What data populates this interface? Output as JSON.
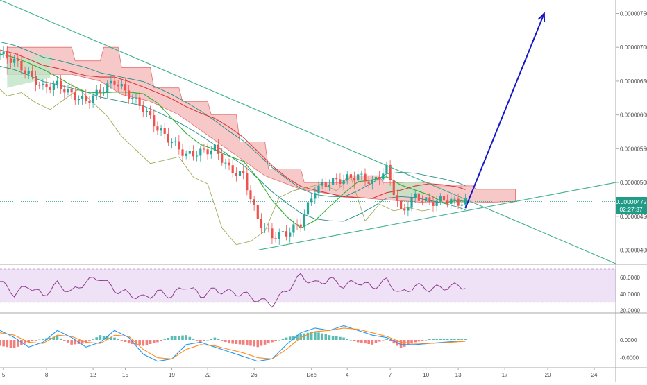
{
  "colors": {
    "background": "#ffffff",
    "axis_text": "#4a4a4a",
    "separator": "#aaaaaa",
    "candle_up": "#26a69a",
    "candle_down": "#ef5350",
    "trendline": "#3bb08f",
    "projection_arrow": "#1616c8",
    "cloud_bear": "#f4b6b6",
    "cloud_bull": "#bfe5c5",
    "rsi_line": "#8e3b8e",
    "rsi_band": "#e9d5f2",
    "macd_line": "#2196f3",
    "signal_line": "#ff8c1a",
    "price_badge": "#1f9b86"
  },
  "price_badge": {
    "price": "0.00000472",
    "countdown": "02:27:37"
  },
  "price_axis": {
    "ticks": [
      "0.00000750",
      "0.00000700",
      "0.00000650",
      "0.00000600",
      "0.00000550",
      "0.00000500",
      "0.00000450",
      "0.00000400"
    ],
    "hidden_under_badge": "0.00000450"
  },
  "rsi_axis": {
    "ticks": [
      "60.0000",
      "40.0000",
      "20.0000"
    ]
  },
  "macd_axis": {
    "ticks": [
      "0.0000",
      "-0.0000"
    ]
  },
  "date_axis": {
    "labels": [
      "5",
      "8",
      "12",
      "15",
      "19",
      "22",
      "26",
      "Dec",
      "4",
      "7",
      "10",
      "13",
      "17",
      "20",
      "24"
    ]
  },
  "chart_data": [
    {
      "type": "candlestick",
      "panel": "price",
      "ylim": [
        3.8e-06,
        7.7e-06
      ],
      "date_labels": [
        "5",
        "8",
        "12",
        "15",
        "19",
        "22",
        "26",
        "Dec",
        "4",
        "7",
        "10",
        "13",
        "17",
        "20",
        "24"
      ],
      "series": [
        {
          "kind": "close",
          "points": [
            [
              0,
              6.9e-06
            ],
            [
              4,
              6.8e-06
            ],
            [
              8,
              6.6e-06
            ],
            [
              12,
              6.4e-06
            ],
            [
              16,
              6.45e-06
            ],
            [
              20,
              6.3e-06
            ],
            [
              24,
              6.2e-06
            ],
            [
              28,
              6.35e-06
            ],
            [
              32,
              6.5e-06
            ],
            [
              36,
              6.3e-06
            ],
            [
              40,
              6.1e-06
            ],
            [
              44,
              5.8e-06
            ],
            [
              48,
              5.6e-06
            ],
            [
              52,
              5.4e-06
            ],
            [
              56,
              5.45e-06
            ],
            [
              60,
              5.5e-06
            ],
            [
              64,
              5.2e-06
            ],
            [
              68,
              5.1e-06
            ],
            [
              72,
              4.45e-06
            ],
            [
              76,
              4.2e-06
            ],
            [
              80,
              4.25e-06
            ],
            [
              84,
              4.4e-06
            ],
            [
              88,
              4.9e-06
            ],
            [
              92,
              5e-06
            ],
            [
              96,
              5.05e-06
            ],
            [
              100,
              5.1e-06
            ],
            [
              104,
              5e-06
            ],
            [
              108,
              5.2e-06
            ],
            [
              112,
              4.55e-06
            ],
            [
              116,
              4.8e-06
            ],
            [
              120,
              4.7e-06
            ],
            [
              124,
              4.75e-06
            ],
            [
              128,
              4.7e-06
            ],
            [
              130,
              4.72e-06
            ]
          ]
        },
        {
          "kind": "ichimoku_cloud_top",
          "points": [
            [
              2,
              7e-06
            ],
            [
              20,
              7e-06
            ],
            [
              21,
              6.8e-06
            ],
            [
              28,
              6.8e-06
            ],
            [
              29,
              7e-06
            ],
            [
              33,
              7e-06
            ],
            [
              34,
              6.7e-06
            ],
            [
              42,
              6.7e-06
            ],
            [
              43,
              6.4e-06
            ],
            [
              50,
              6.4e-06
            ],
            [
              51,
              6.2e-06
            ],
            [
              58,
              6.2e-06
            ],
            [
              59,
              6e-06
            ],
            [
              66,
              6e-06
            ],
            [
              67,
              5.6e-06
            ],
            [
              74,
              5.6e-06
            ],
            [
              75,
              5.2e-06
            ],
            [
              84,
              5.2e-06
            ],
            [
              85,
              5e-06
            ],
            [
              96,
              5e-06
            ],
            [
              97,
              5.1e-06
            ],
            [
              106,
              5.1e-06
            ],
            [
              107,
              5e-06
            ],
            [
              120,
              5e-06
            ],
            [
              121,
              4.95e-06
            ],
            [
              132,
              4.95e-06
            ],
            [
              133,
              4.9e-06
            ],
            [
              144,
              4.9e-06
            ]
          ]
        },
        {
          "kind": "ichimoku_cloud_bottom",
          "points": [
            [
              2,
              6.6e-06
            ],
            [
              20,
              6.6e-06
            ],
            [
              28,
              6.5e-06
            ],
            [
              34,
              6.3e-06
            ],
            [
              42,
              6.2e-06
            ],
            [
              50,
              6e-06
            ],
            [
              58,
              5.7e-06
            ],
            [
              66,
              5.4e-06
            ],
            [
              74,
              5.1e-06
            ],
            [
              84,
              4.9e-06
            ],
            [
              96,
              4.8e-06
            ],
            [
              106,
              4.75e-06
            ],
            [
              120,
              4.7e-06
            ],
            [
              132,
              4.7e-06
            ],
            [
              144,
              4.72e-06
            ]
          ]
        }
      ],
      "annotations": [
        {
          "kind": "trendline_upper",
          "from": [
            0,
            7.7e-06
          ],
          "to": [
            172,
            3.8e-06
          ]
        },
        {
          "kind": "trendline_lower",
          "from": [
            72,
            4e-06
          ],
          "to": [
            172,
            5e-06
          ]
        },
        {
          "kind": "projection_arrow",
          "from": [
            130,
            4.62e-06
          ],
          "to": [
            152,
            7.5e-06
          ]
        }
      ]
    },
    {
      "type": "line",
      "panel": "rsi",
      "ylim": [
        18,
        75
      ],
      "band": [
        30,
        70
      ],
      "x": [
        0,
        4,
        8,
        12,
        16,
        20,
        24,
        28,
        32,
        36,
        40,
        44,
        48,
        52,
        56,
        60,
        64,
        68,
        72,
        76,
        80,
        84,
        88,
        92,
        96,
        100,
        104,
        108,
        112,
        116,
        120,
        124,
        128,
        130
      ],
      "series": [
        {
          "values": [
            55,
            40,
            50,
            38,
            52,
            42,
            55,
            60,
            45,
            40,
            35,
            42,
            38,
            50,
            38,
            45,
            42,
            40,
            33,
            28,
            44,
            62,
            52,
            58,
            50,
            55,
            48,
            56,
            40,
            50,
            46,
            48,
            50,
            49
          ]
        }
      ]
    },
    {
      "type": "bar",
      "panel": "macd",
      "ylim": [
        -1.0,
        1.0
      ],
      "x": [
        0,
        4,
        8,
        12,
        16,
        20,
        24,
        28,
        32,
        36,
        40,
        44,
        48,
        52,
        56,
        60,
        64,
        68,
        72,
        76,
        80,
        84,
        88,
        92,
        96,
        100,
        104,
        108,
        112,
        116,
        120,
        124,
        128,
        130
      ],
      "histogram": [
        -0.25,
        -0.35,
        -0.1,
        0.05,
        0.15,
        -0.2,
        -0.15,
        0.2,
        0.1,
        -0.15,
        -0.25,
        -0.1,
        0.15,
        0.2,
        -0.1,
        0.1,
        -0.15,
        -0.2,
        -0.3,
        -0.1,
        0.1,
        0.25,
        0.35,
        0.2,
        0.1,
        -0.1,
        -0.2,
        0.05,
        -0.35,
        -0.1,
        0.03,
        0.03,
        0.04,
        0.03
      ],
      "series": [
        {
          "kind": "macd",
          "values": [
            0.4,
            0.1,
            -0.3,
            -0.1,
            0.4,
            0.1,
            -0.3,
            -0.1,
            0.4,
            0.1,
            -0.6,
            -0.9,
            -0.8,
            -0.2,
            -0.1,
            -0.3,
            -0.5,
            -0.7,
            -0.9,
            -0.8,
            -0.2,
            0.3,
            0.5,
            0.4,
            0.6,
            0.4,
            0.2,
            0.1,
            -0.2,
            -0.2,
            -0.15,
            -0.1,
            -0.05,
            -0.05
          ]
        },
        {
          "kind": "signal",
          "values": [
            0.3,
            0.2,
            -0.1,
            -0.15,
            0.2,
            0.15,
            -0.1,
            -0.15,
            0.2,
            0.15,
            -0.4,
            -0.75,
            -0.8,
            -0.4,
            -0.2,
            -0.25,
            -0.4,
            -0.55,
            -0.75,
            -0.8,
            -0.4,
            0.1,
            0.35,
            0.4,
            0.5,
            0.45,
            0.3,
            0.15,
            -0.1,
            -0.15,
            -0.15,
            -0.12,
            -0.08,
            -0.06
          ]
        }
      ]
    }
  ]
}
